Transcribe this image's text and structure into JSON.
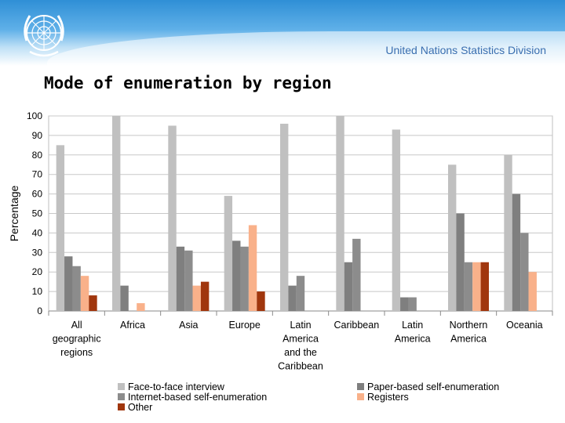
{
  "header": {
    "org_name": "United Nations Statistics Division",
    "emblem": "un-emblem-icon"
  },
  "slide": {
    "title": "Mode of enumeration by region"
  },
  "colors": {
    "Face-to-face interview": "#c0c0c0",
    "Paper-based self-enumeration": "#7f7f7f",
    "Internet-based self-enumeration": "#8c8c8c",
    "Registers": "#f9b18a",
    "Other": "#a0360d"
  },
  "chart_data": {
    "type": "bar",
    "title": "",
    "xlabel": "",
    "ylabel": "Percentage",
    "ylim": [
      0,
      100
    ],
    "yticks": [
      0,
      10,
      20,
      30,
      40,
      50,
      60,
      70,
      80,
      90,
      100
    ],
    "grid": true,
    "legend_position": "bottom",
    "categories": [
      [
        "All",
        "geographic",
        "regions"
      ],
      [
        "Africa"
      ],
      [
        "Asia"
      ],
      [
        "Europe"
      ],
      [
        "Latin",
        "America",
        "and the",
        "Caribbean"
      ],
      [
        "Caribbean"
      ],
      [
        "Latin",
        "America"
      ],
      [
        "Northern",
        "America"
      ],
      [
        "Oceania"
      ]
    ],
    "series": [
      {
        "name": "Face-to-face interview",
        "values": [
          85,
          100,
          95,
          59,
          96,
          100,
          93,
          75,
          80
        ]
      },
      {
        "name": "Paper-based self-enumeration",
        "values": [
          28,
          13,
          33,
          36,
          13,
          25,
          7,
          50,
          60
        ]
      },
      {
        "name": "Internet-based self-enumeration",
        "values": [
          23,
          0,
          31,
          33,
          18,
          37,
          7,
          25,
          40
        ]
      },
      {
        "name": "Registers",
        "values": [
          18,
          4,
          13,
          44,
          0,
          0,
          0,
          25,
          20
        ]
      },
      {
        "name": "Other",
        "values": [
          8,
          0,
          15,
          10,
          0,
          0,
          0,
          25,
          0
        ]
      }
    ]
  }
}
